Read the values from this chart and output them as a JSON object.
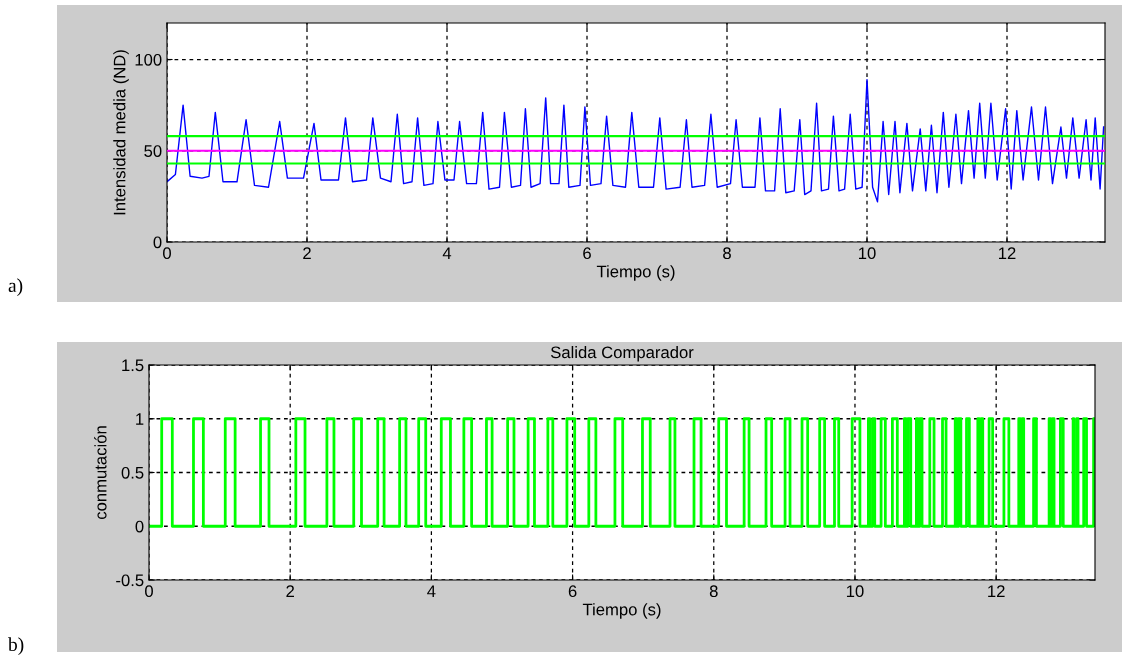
{
  "chart_data": [
    {
      "type": "line",
      "xlabel": "Tiempo (s)",
      "ylabel": "Intensidad media (ND)",
      "xlim": [
        0,
        13.4
      ],
      "ylim": [
        0,
        120
      ],
      "xticks": [
        0,
        2,
        4,
        6,
        8,
        10,
        12
      ],
      "yticks": [
        0,
        50,
        100
      ],
      "grid": true,
      "annotations": [
        "a)"
      ],
      "ref_lines": [
        {
          "axis": "y",
          "value": 58,
          "color": "#00ff00"
        },
        {
          "axis": "y",
          "value": 43,
          "color": "#00ff00"
        },
        {
          "axis": "y",
          "value": 50,
          "color": "#ff00ff"
        }
      ],
      "series": [
        {
          "color": "#0000ff",
          "x": [
            0,
            0.12,
            0.23,
            0.33,
            0.5,
            0.6,
            0.69,
            0.8,
            1.0,
            1.13,
            1.25,
            1.45,
            1.61,
            1.72,
            1.95,
            2.1,
            2.2,
            2.45,
            2.55,
            2.65,
            2.85,
            2.94,
            3.05,
            3.2,
            3.29,
            3.38,
            3.5,
            3.58,
            3.67,
            3.8,
            3.87,
            3.97,
            4.1,
            4.18,
            4.28,
            4.42,
            4.51,
            4.6,
            4.75,
            4.82,
            4.92,
            5.05,
            5.12,
            5.2,
            5.33,
            5.41,
            5.48,
            5.6,
            5.67,
            5.74,
            5.9,
            5.97,
            6.05,
            6.2,
            6.28,
            6.37,
            6.55,
            6.64,
            6.74,
            6.95,
            7.04,
            7.13,
            7.33,
            7.42,
            7.5,
            7.68,
            7.77,
            7.86,
            8.05,
            8.13,
            8.22,
            8.4,
            8.47,
            8.55,
            8.68,
            8.76,
            8.84,
            8.96,
            9.04,
            9.11,
            9.2,
            9.28,
            9.35,
            9.45,
            9.52,
            9.6,
            9.68,
            9.76,
            9.84,
            9.93,
            10.0,
            10.08,
            10.15,
            10.23,
            10.31,
            10.4,
            10.47,
            10.57,
            10.65,
            10.76,
            10.84,
            10.92,
            11.0,
            11.09,
            11.17,
            11.27,
            11.35,
            11.45,
            11.53,
            11.61,
            11.69,
            11.77,
            11.86,
            11.98,
            12.06,
            12.14,
            12.23,
            12.35,
            12.45,
            12.55,
            12.65,
            12.77,
            12.85,
            12.94,
            13.03,
            13.13,
            13.2,
            13.26,
            13.33,
            13.38
          ],
          "values": [
            33,
            37,
            75,
            36,
            35,
            36,
            71,
            33,
            33,
            67,
            31,
            30,
            66,
            35,
            35,
            65,
            34,
            34,
            68,
            33,
            34,
            68,
            35,
            33,
            70,
            32,
            33,
            68,
            31,
            32,
            66,
            34,
            34,
            66,
            32,
            32,
            71,
            29,
            30,
            71,
            30,
            31,
            73,
            30,
            32,
            79,
            32,
            32,
            75,
            30,
            31,
            74,
            31,
            32,
            69,
            31,
            30,
            71,
            30,
            30,
            68,
            29,
            30,
            67,
            30,
            31,
            70,
            30,
            32,
            67,
            30,
            30,
            68,
            28,
            28,
            73,
            27,
            28,
            67,
            26,
            28,
            76,
            28,
            29,
            69,
            28,
            29,
            70,
            29,
            30,
            89,
            30,
            22,
            66,
            26,
            66,
            27,
            65,
            28,
            62,
            28,
            64,
            27,
            71,
            30,
            70,
            32,
            72,
            35,
            76,
            35,
            76,
            34,
            73,
            29,
            72,
            34,
            74,
            34,
            74,
            32,
            63,
            35,
            68,
            35,
            67,
            34,
            68,
            29,
            63
          ]
        }
      ]
    },
    {
      "type": "step",
      "title": "Salida Comparador",
      "xlabel": "Tiempo (s)",
      "ylabel": "conmutación",
      "xlim": [
        0,
        13.4
      ],
      "ylim": [
        -0.5,
        1.5
      ],
      "xticks": [
        0,
        2,
        4,
        6,
        8,
        10,
        12
      ],
      "yticks": [
        -0.5,
        0,
        0.5,
        1,
        1.5
      ],
      "grid": true,
      "annotations": [
        "b)"
      ],
      "series": [
        {
          "color": "#00ff00",
          "x": [
            0,
            0.18,
            0.33,
            0.63,
            0.77,
            1.08,
            1.22,
            1.58,
            1.7,
            2.08,
            2.21,
            2.52,
            2.62,
            2.9,
            3.01,
            3.24,
            3.33,
            3.55,
            3.64,
            3.82,
            3.92,
            4.14,
            4.27,
            4.46,
            4.57,
            4.78,
            4.86,
            5.08,
            5.17,
            5.37,
            5.46,
            5.65,
            5.72,
            5.92,
            6.03,
            6.23,
            6.33,
            6.6,
            6.71,
            6.99,
            7.1,
            7.38,
            7.45,
            7.72,
            7.82,
            8.07,
            8.18,
            8.43,
            8.5,
            8.74,
            8.82,
            9.01,
            9.08,
            9.25,
            9.33,
            9.5,
            9.57,
            9.71,
            9.77,
            9.96,
            10.07,
            10.19,
            10.21,
            10.25,
            10.28,
            10.37,
            10.43,
            10.53,
            10.6,
            10.7,
            10.72,
            10.75,
            10.79,
            10.87,
            10.89,
            10.92,
            10.95,
            11.06,
            11.12,
            11.24,
            11.29,
            11.42,
            11.44,
            11.47,
            11.5,
            11.58,
            11.62,
            11.74,
            11.76,
            11.79,
            11.81,
            11.9,
            11.95,
            12.11,
            12.18,
            12.32,
            12.34,
            12.37,
            12.39,
            12.53,
            12.57,
            12.75,
            12.77,
            12.8,
            12.82,
            12.91,
            12.95,
            13.09,
            13.1,
            13.14,
            13.16,
            13.24,
            13.28,
            13.38,
            13.4
          ],
          "values": [
            0,
            1,
            0,
            1,
            0,
            1,
            0,
            1,
            0,
            1,
            0,
            1,
            0,
            1,
            0,
            1,
            0,
            1,
            0,
            1,
            0,
            1,
            0,
            1,
            0,
            1,
            0,
            1,
            0,
            1,
            0,
            1,
            0,
            1,
            0,
            1,
            0,
            1,
            0,
            1,
            0,
            1,
            0,
            1,
            0,
            1,
            0,
            1,
            0,
            1,
            0,
            1,
            0,
            1,
            0,
            1,
            0,
            1,
            0,
            1,
            0,
            1,
            0,
            1,
            0,
            1,
            0,
            1,
            0,
            1,
            0,
            1,
            0,
            1,
            0,
            1,
            0,
            1,
            0,
            1,
            0,
            1,
            0,
            1,
            0,
            1,
            0,
            1,
            0,
            1,
            0,
            1,
            0,
            1,
            0,
            1,
            0,
            1,
            0,
            1,
            0,
            1,
            0,
            1,
            0,
            1,
            0,
            1,
            0,
            1,
            0,
            1,
            0,
            1,
            1
          ]
        }
      ]
    }
  ]
}
